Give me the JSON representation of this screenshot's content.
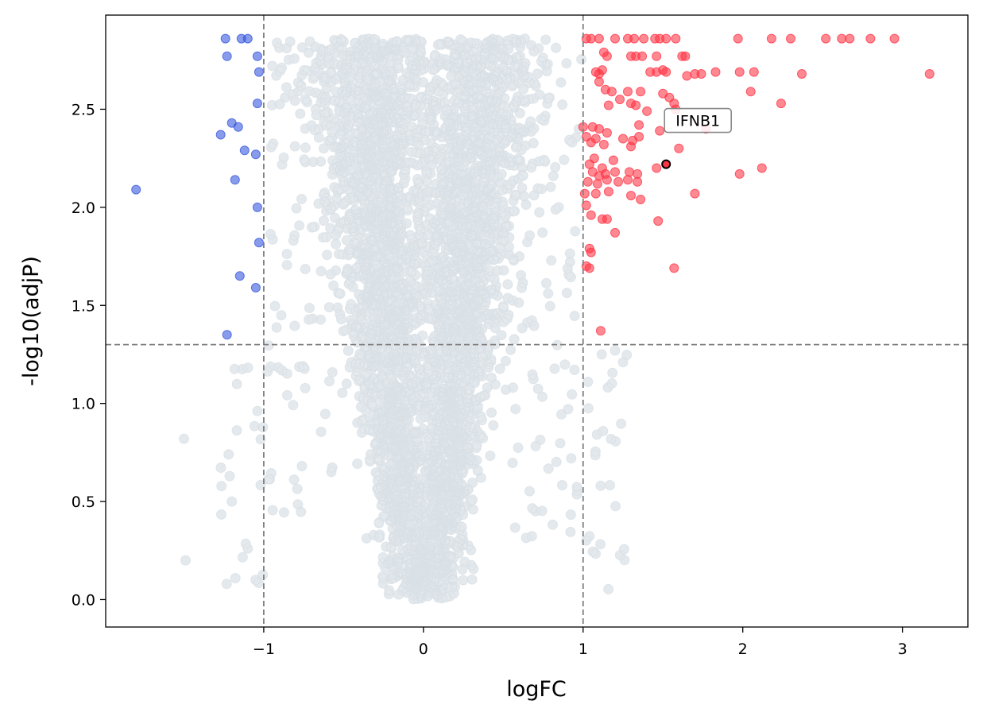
{
  "chart_data": {
    "type": "scatter",
    "title": "",
    "xlabel": "logFC",
    "ylabel": "-log10(adjP)",
    "xlim": [
      -1.99,
      3.41
    ],
    "ylim": [
      -0.14,
      2.98
    ],
    "x_ticks": [
      -1,
      0,
      1,
      2,
      3
    ],
    "x_tick_labels": [
      "−1",
      "0",
      "1",
      "2",
      "3"
    ],
    "y_ticks": [
      0.0,
      0.5,
      1.0,
      1.5,
      2.0,
      2.5
    ],
    "y_tick_labels": [
      "0.0",
      "0.5",
      "1.0",
      "1.5",
      "2.0",
      "2.5"
    ],
    "grid": false,
    "legend": "none",
    "thresholds": {
      "logfc": [
        -1,
        1
      ],
      "neg_log10_adjp": 1.3
    },
    "colors": {
      "up": "#ff3344",
      "down": "#3355dd",
      "not_significant": "#d3dbe2",
      "threshold_line": "#808080",
      "highlight_edge": "#000000"
    },
    "series": [
      {
        "role": "up",
        "x": [
          1.02,
          1.05,
          1.1,
          1.2,
          1.28,
          1.32,
          1.38,
          1.45,
          1.48,
          1.52,
          1.58,
          1.97,
          2.18,
          2.3,
          2.52,
          2.62,
          2.67,
          2.8,
          2.95,
          1.13,
          1.15,
          1.3,
          1.33,
          1.37,
          1.46,
          1.62,
          1.64,
          1.08,
          1.1,
          1.12,
          1.42,
          1.46,
          1.5,
          1.52,
          1.65,
          1.7,
          1.74,
          1.83,
          1.98,
          2.07,
          2.37,
          3.17,
          1.1,
          1.14,
          1.18,
          1.28,
          1.36,
          1.5,
          1.54,
          1.57,
          2.05,
          1.16,
          1.23,
          1.3,
          1.33,
          1.4,
          1.58,
          2.24,
          1.0,
          1.06,
          1.1,
          1.15,
          1.35,
          1.48,
          1.77,
          1.02,
          1.05,
          1.08,
          1.13,
          1.3,
          1.35,
          1.6,
          1.04,
          1.07,
          1.12,
          1.19,
          1.25,
          1.31,
          1.46,
          1.06,
          1.1,
          1.14,
          1.2,
          1.29,
          1.34,
          1.98,
          2.12,
          1.03,
          1.09,
          1.15,
          1.22,
          1.28,
          1.34,
          1.01,
          1.08,
          1.16,
          1.3,
          1.36,
          1.7,
          1.02,
          1.05,
          1.12,
          1.15,
          1.47,
          1.2,
          1.04,
          1.04,
          1.02,
          1.05,
          1.57,
          1.11
        ],
        "y": [
          2.86,
          2.86,
          2.86,
          2.86,
          2.86,
          2.86,
          2.86,
          2.86,
          2.86,
          2.86,
          2.86,
          2.86,
          2.86,
          2.86,
          2.86,
          2.86,
          2.86,
          2.86,
          2.86,
          2.79,
          2.77,
          2.77,
          2.77,
          2.77,
          2.77,
          2.77,
          2.77,
          2.69,
          2.68,
          2.7,
          2.69,
          2.69,
          2.7,
          2.69,
          2.67,
          2.68,
          2.68,
          2.69,
          2.69,
          2.69,
          2.68,
          2.68,
          2.64,
          2.6,
          2.59,
          2.59,
          2.59,
          2.58,
          2.56,
          2.53,
          2.59,
          2.52,
          2.55,
          2.53,
          2.52,
          2.49,
          2.5,
          2.53,
          2.41,
          2.41,
          2.4,
          2.38,
          2.42,
          2.39,
          2.4,
          2.36,
          2.33,
          2.35,
          2.32,
          2.31,
          2.36,
          2.3,
          2.22,
          2.25,
          2.2,
          2.24,
          2.35,
          2.34,
          2.2,
          2.18,
          2.16,
          2.17,
          2.18,
          2.18,
          2.17,
          2.17,
          2.2,
          2.13,
          2.12,
          2.14,
          2.13,
          2.14,
          2.13,
          2.07,
          2.07,
          2.08,
          2.06,
          2.04,
          2.07,
          2.01,
          1.96,
          1.94,
          1.94,
          1.93,
          1.87,
          1.69,
          1.79,
          1.7,
          1.77,
          1.69,
          1.37
        ]
      },
      {
        "role": "down",
        "x": [
          -1.24,
          -1.14,
          -1.1,
          -1.23,
          -1.04,
          -1.03,
          -1.04,
          -1.2,
          -1.16,
          -1.12,
          -1.05,
          -1.27,
          -1.8,
          -1.18,
          -1.04,
          -1.03,
          -1.15,
          -1.05,
          -1.23
        ],
        "y": [
          2.86,
          2.86,
          2.86,
          2.77,
          2.77,
          2.69,
          2.53,
          2.43,
          2.41,
          2.29,
          2.27,
          2.37,
          2.09,
          2.14,
          2.0,
          1.82,
          1.65,
          1.59,
          1.35
        ]
      },
      {
        "role": "highlight",
        "x": [
          1.52
        ],
        "y": [
          2.22
        ]
      }
    ],
    "annotations": [
      {
        "text": "IFNB1",
        "x": 1.52,
        "y": 2.22
      }
    ]
  }
}
